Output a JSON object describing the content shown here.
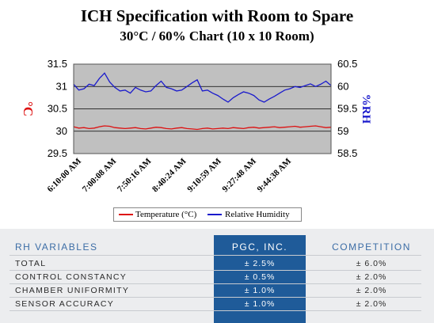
{
  "title": "ICH Specification with Room to Spare",
  "subtitle": "30°C / 60% Chart (10 x 10 Room)",
  "colors": {
    "temperature": "#dd1111",
    "humidity": "#1a1acc",
    "plot_bg": "#c0c0c0",
    "pgc_column": "#1f5b99",
    "header_text": "#3c6da6"
  },
  "chart_data": {
    "type": "line",
    "left_axis": {
      "label": "°C",
      "ylim": [
        29.5,
        31.5
      ],
      "ticks": [
        "29.5",
        "30",
        "30.5",
        "31",
        "31.5"
      ]
    },
    "right_axis": {
      "label": "%RH",
      "ylim": [
        58.5,
        60.5
      ],
      "ticks": [
        "58.5",
        "59",
        "59.5",
        "60",
        "60.5"
      ]
    },
    "x_tick_labels": [
      "6:10:00 AM",
      "7:00:08 AM",
      "7:50:16 AM",
      "8:40:24 AM",
      "9:10:59 AM",
      "9:27:48 AM",
      "9:44:38 AM"
    ],
    "grid": true,
    "series": [
      {
        "name": "Temperature (°C)",
        "axis": "left",
        "x": [
          0,
          2,
          4,
          6,
          8,
          10,
          12,
          14,
          16,
          18,
          20,
          22,
          24,
          26,
          28,
          30,
          32,
          34,
          36,
          38,
          40,
          42,
          44,
          46,
          48,
          50,
          52,
          54,
          56,
          58,
          60,
          62,
          64,
          66,
          68,
          70,
          72,
          74,
          76,
          78,
          80,
          82,
          84,
          86,
          88,
          90,
          92,
          94,
          96,
          98,
          100
        ],
        "values": [
          30.1,
          30.07,
          30.08,
          30.06,
          30.07,
          30.1,
          30.12,
          30.11,
          30.08,
          30.07,
          30.06,
          30.07,
          30.08,
          30.06,
          30.05,
          30.07,
          30.09,
          30.08,
          30.06,
          30.05,
          30.07,
          30.08,
          30.06,
          30.05,
          30.04,
          30.06,
          30.07,
          30.05,
          30.06,
          30.07,
          30.06,
          30.08,
          30.07,
          30.06,
          30.08,
          30.09,
          30.07,
          30.08,
          30.09,
          30.1,
          30.08,
          30.09,
          30.1,
          30.11,
          30.09,
          30.1,
          30.11,
          30.12,
          30.1,
          30.08,
          30.09
        ]
      },
      {
        "name": "Relative Humidity",
        "axis": "right",
        "x": [
          0,
          2,
          4,
          6,
          8,
          10,
          12,
          14,
          16,
          18,
          20,
          22,
          24,
          26,
          28,
          30,
          32,
          34,
          36,
          38,
          40,
          42,
          44,
          46,
          48,
          50,
          52,
          54,
          56,
          58,
          60,
          62,
          64,
          66,
          68,
          70,
          72,
          74,
          76,
          78,
          80,
          82,
          84,
          86,
          88,
          90,
          92,
          94,
          96,
          98,
          100
        ],
        "values": [
          60.05,
          59.92,
          59.95,
          60.05,
          60.02,
          60.18,
          60.3,
          60.1,
          59.98,
          59.9,
          59.92,
          59.85,
          59.98,
          59.92,
          59.88,
          59.9,
          60.02,
          60.12,
          59.98,
          59.95,
          59.9,
          59.92,
          60.0,
          60.08,
          60.15,
          59.9,
          59.92,
          59.85,
          59.8,
          59.72,
          59.65,
          59.75,
          59.82,
          59.88,
          59.85,
          59.8,
          59.7,
          59.65,
          59.72,
          59.78,
          59.85,
          59.92,
          59.95,
          60.0,
          59.98,
          60.02,
          60.06,
          60.0,
          60.05,
          60.12,
          60.02
        ]
      }
    ]
  },
  "table": {
    "headers": {
      "label": "RH VARIABLES",
      "pgc": "PGC, INC.",
      "competition": "COMPETITION"
    },
    "rows": [
      {
        "label": "TOTAL",
        "pgc": "± 2.5%",
        "competition": "± 6.0%"
      },
      {
        "label": "CONTROL CONSTANCY",
        "pgc": "± 0.5%",
        "competition": "± 2.0%"
      },
      {
        "label": "CHAMBER UNIFORMITY",
        "pgc": "± 1.0%",
        "competition": "± 2.0%"
      },
      {
        "label": "SENSOR ACCURACY",
        "pgc": "± 1.0%",
        "competition": "± 2.0%"
      }
    ]
  }
}
